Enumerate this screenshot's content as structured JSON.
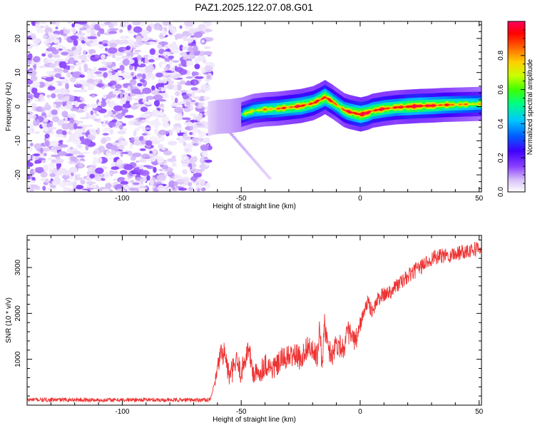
{
  "figure_title": "PAZ1.2025.122.07.08.G01",
  "chart_data": [
    {
      "type": "heatmap",
      "xlabel": "Height of straight line (km)",
      "ylabel": "Frequency (Hz)",
      "xlim": [
        -140,
        51
      ],
      "ylim": [
        -25,
        25
      ],
      "x_ticks": [
        -100,
        -50,
        0,
        50
      ],
      "y_ticks": [
        -20,
        -10,
        0,
        10,
        20
      ],
      "colorbar": {
        "label": "Normalized spectral amplitude",
        "range": [
          0.0,
          1.0
        ],
        "ticks": [
          0.0,
          0.2,
          0.4,
          0.6,
          0.8
        ],
        "colormap": [
          "#ffffff",
          "#d8c0f8",
          "#8a40ff",
          "#4000ff",
          "#0040ff",
          "#00c0ff",
          "#00ff80",
          "#40ff00",
          "#c0ff00",
          "#ffd000",
          "#ff6000",
          "#ff0000",
          "#ff0060"
        ]
      },
      "noise_region": {
        "x_range": [
          -140,
          -63
        ],
        "y_range": [
          -25,
          25
        ],
        "amplitude_range": [
          0.0,
          0.15
        ]
      },
      "signal_ridge": {
        "x": [
          -64,
          -60,
          -55,
          -50,
          -45,
          -40,
          -35,
          -30,
          -25,
          -20,
          -17,
          -15,
          -12,
          -10,
          -7,
          -5,
          -2,
          0,
          3,
          5,
          10,
          15,
          20,
          25,
          30,
          35,
          40,
          45,
          50,
          51
        ],
        "frequency": [
          -3.5,
          -3,
          -2.8,
          -2.3,
          -1.2,
          -0.8,
          -0.6,
          -0.2,
          0.2,
          1,
          2,
          2.8,
          1.5,
          0.5,
          -1,
          -1.5,
          -2,
          -2.3,
          -1.8,
          -1.2,
          -0.6,
          -0.2,
          0,
          0.2,
          0.3,
          0.5,
          0.6,
          0.7,
          0.8,
          0.8
        ],
        "peak_amplitude": [
          0.3,
          0.45,
          0.5,
          0.6,
          0.7,
          0.75,
          0.8,
          0.85,
          0.9,
          0.85,
          0.9,
          0.95,
          0.85,
          0.8,
          0.85,
          0.9,
          0.95,
          1.0,
          0.95,
          0.9,
          0.9,
          0.85,
          0.95,
          0.95,
          0.9,
          0.85,
          0.8,
          0.75,
          0.7,
          0.7
        ]
      }
    },
    {
      "type": "line",
      "xlabel": "Height of straight line (km)",
      "ylabel": "SNR (10 * v/v)",
      "xlim": [
        -140,
        51
      ],
      "ylim": [
        0,
        3700
      ],
      "x_ticks": [
        -100,
        -50,
        0,
        50
      ],
      "y_ticks": [
        1000,
        2000,
        3000
      ],
      "series": [
        {
          "color": "#ee3333",
          "x": [
            -140,
            -130,
            -120,
            -110,
            -100,
            -90,
            -80,
            -70,
            -63,
            -60,
            -59,
            -57,
            -55,
            -52,
            -50,
            -47,
            -45,
            -43,
            -40,
            -37,
            -35,
            -33,
            -30,
            -27,
            -25,
            -22,
            -20,
            -18,
            -17,
            -16,
            -15,
            -14,
            -13,
            -12,
            -10,
            -7,
            -5,
            -2,
            0,
            3,
            5,
            8,
            10,
            13,
            15,
            18,
            20,
            25,
            30,
            35,
            40,
            45,
            50,
            51
          ],
          "y": [
            120,
            115,
            120,
            110,
            115,
            120,
            110,
            115,
            120,
            700,
            1100,
            1150,
            600,
            950,
            700,
            1250,
            700,
            650,
            900,
            800,
            850,
            1000,
            1050,
            1100,
            1000,
            1300,
            1150,
            1050,
            1650,
            900,
            1750,
            1400,
            1200,
            1100,
            1350,
            1250,
            1600,
            1350,
            1750,
            2250,
            2050,
            2350,
            2400,
            2500,
            2600,
            2700,
            2800,
            3000,
            3200,
            3250,
            3300,
            3380,
            3420,
            3450
          ]
        }
      ]
    }
  ]
}
